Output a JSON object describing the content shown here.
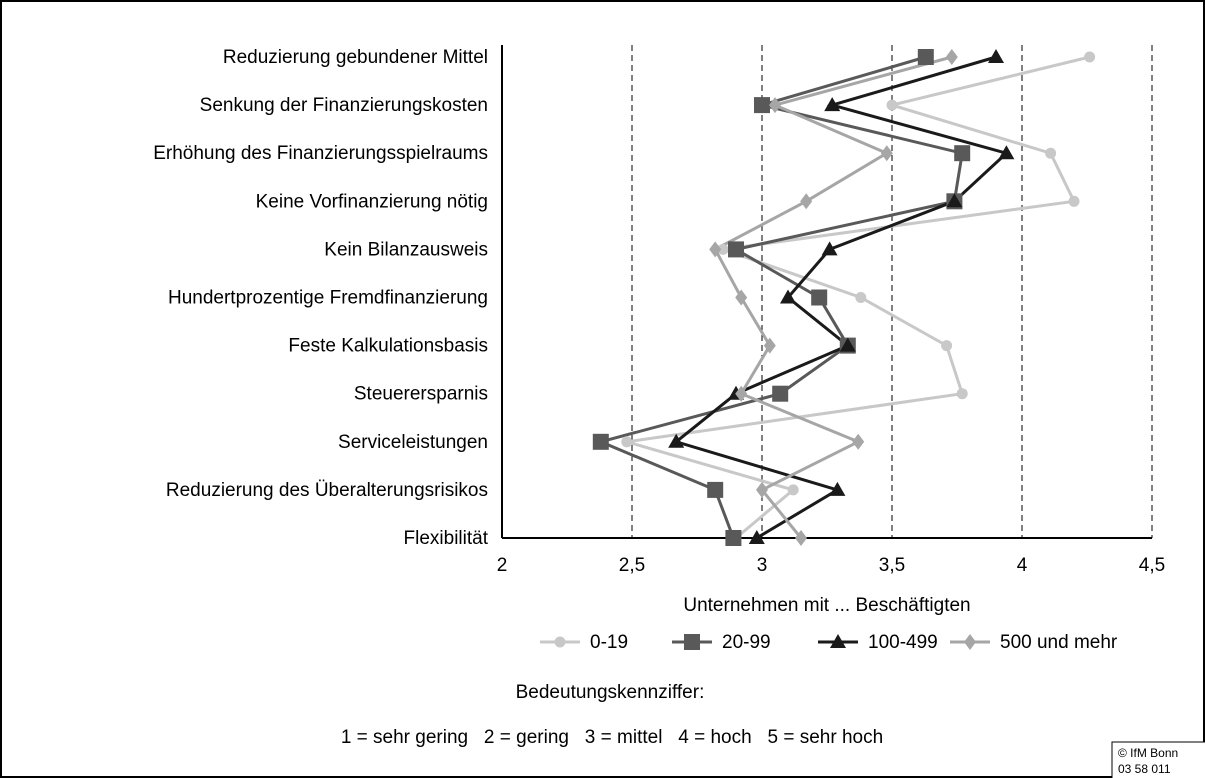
{
  "chart_data": {
    "type": "line",
    "orientation": "horizontal",
    "categories": [
      "Reduzierung gebundener Mittel",
      "Senkung der Finanzierungskosten",
      "Erhöhung des Finanzierungsspielraums",
      "Keine Vorfinanzierung nötig",
      "Kein Bilanzausweis",
      "Hundertprozentige Fremdfinanzierung",
      "Feste Kalkulationsbasis",
      "Steuerersparnis",
      "Serviceleistungen",
      "Reduzierung des Überalterungsrisikos",
      "Flexibilität"
    ],
    "xlabel": "Unternehmen mit ... Beschäftigten",
    "xlim": [
      2,
      4.5
    ],
    "xticks": [
      2,
      {
        "value": 2.5,
        "label": "2,5"
      },
      3,
      {
        "value": 3.5,
        "label": "3,5"
      },
      4,
      {
        "value": 4.5,
        "label": "4,5"
      }
    ],
    "grid": true,
    "series": [
      {
        "name": "0-19",
        "color": "#c8c8c8",
        "marker": "circle",
        "values": [
          4.26,
          3.5,
          4.11,
          4.2,
          2.85,
          3.38,
          3.71,
          3.77,
          2.48,
          3.12,
          2.9
        ]
      },
      {
        "name": "20-99",
        "color": "#595959",
        "marker": "square",
        "values": [
          3.63,
          3.0,
          3.77,
          3.74,
          2.9,
          3.22,
          3.33,
          3.07,
          2.38,
          2.82,
          2.89
        ]
      },
      {
        "name": "100-499",
        "color": "#1a1a1a",
        "marker": "triangle",
        "values": [
          3.9,
          3.27,
          3.94,
          3.74,
          3.26,
          3.1,
          3.33,
          2.9,
          2.67,
          3.29,
          2.98
        ]
      },
      {
        "name": "500 und mehr",
        "color": "#a6a6a6",
        "marker": "diamond",
        "values": [
          3.73,
          3.05,
          3.48,
          3.17,
          2.82,
          2.92,
          3.03,
          2.92,
          3.37,
          3.0,
          3.15
        ]
      }
    ],
    "notes": [
      "Bedeutungskennziffer:",
      "1 = sehr gering   2 = gering   3 = mittel   4 = hoch   5 = sehr hoch"
    ],
    "source": [
      "© IfM Bonn",
      "03 58 011"
    ]
  }
}
